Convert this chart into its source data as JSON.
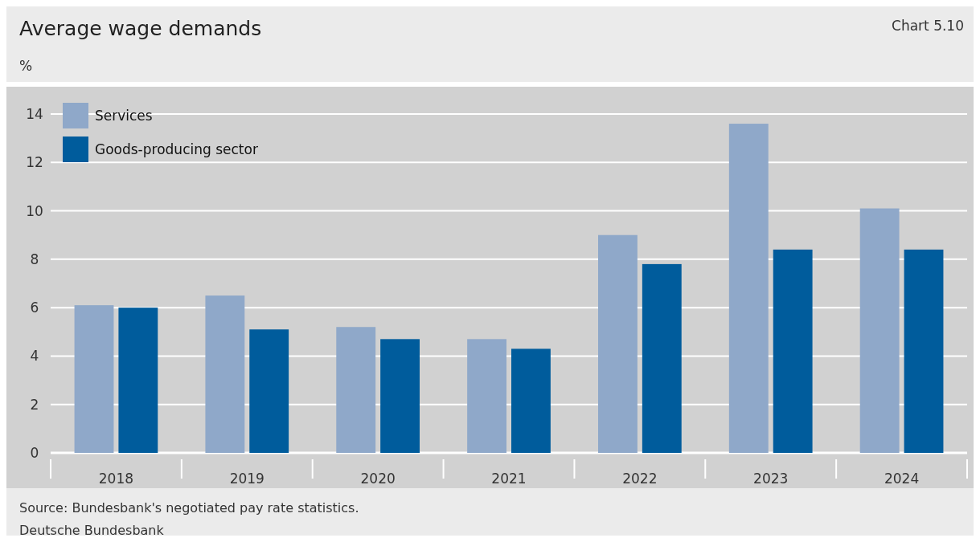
{
  "chart_data": {
    "type": "bar",
    "title": "Average wage demands",
    "ylabel": "%",
    "categories": [
      "2018",
      "2019",
      "2020",
      "2021",
      "2022",
      "2023",
      "2024"
    ],
    "series": [
      {
        "name": "Services",
        "color": "#8fa8c9",
        "values": [
          6.1,
          6.5,
          5.2,
          4.7,
          9.0,
          13.6,
          10.1
        ]
      },
      {
        "name": "Goods-producing sector",
        "color": "#005c9c",
        "values": [
          6.0,
          5.1,
          4.7,
          4.3,
          7.8,
          8.4,
          8.4
        ]
      }
    ],
    "ylim": [
      0,
      14
    ],
    "yticks": [
      0,
      2,
      4,
      6,
      8,
      10,
      12,
      14
    ],
    "grid": "y",
    "legend": "top left",
    "annotations": [
      "Chart 5.10",
      "Source: Bundesbank's negotiated pay rate statistics.",
      "Deutsche Bundesbank"
    ]
  }
}
